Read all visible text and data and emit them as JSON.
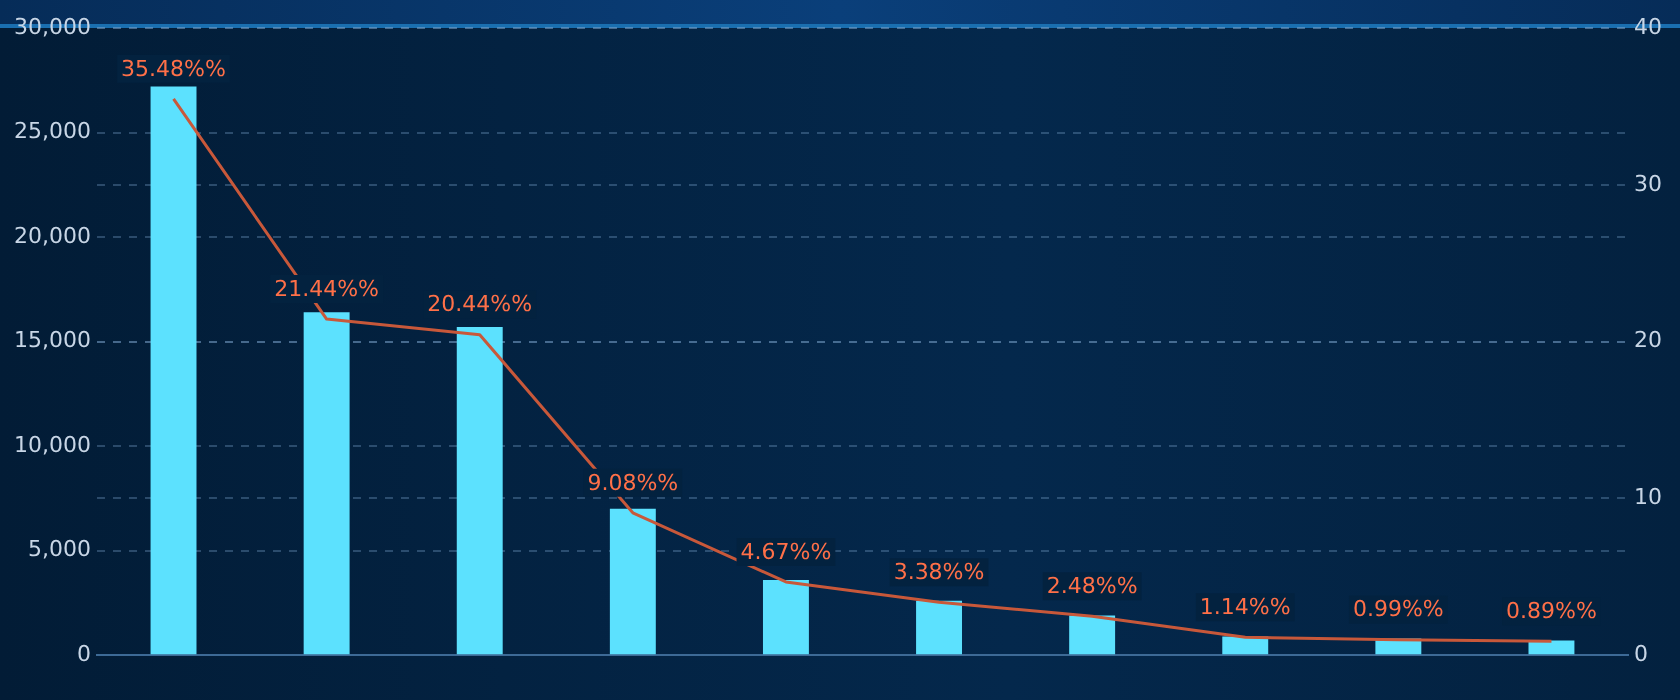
{
  "chart_data": {
    "type": "bar",
    "categories": [
      null,
      null,
      null,
      null,
      null,
      null,
      null,
      null,
      null,
      null
    ],
    "series": [
      {
        "color": "#5ce1fe",
        "values": [
          27200,
          16400,
          15700,
          7000,
          3600,
          2600,
          1900,
          900,
          800,
          700
        ]
      },
      {
        "type": "line",
        "axis": "y2",
        "color": "#c8583a",
        "values": [
          35.48,
          21.44,
          20.44,
          9.08,
          4.67,
          3.38,
          2.48,
          1.14,
          0.99,
          0.89
        ],
        "value_labels": [
          "35.48%%",
          "21.44%%",
          "20.44%%",
          "9.08%%",
          "4.67%%",
          "3.38%%",
          "2.48%%",
          "1.14%%",
          "0.99%%",
          "0.89%%"
        ]
      }
    ],
    "ylim": [
      0,
      30000
    ],
    "yticks": [
      {
        "value": 0,
        "label": "0"
      },
      {
        "value": 5000,
        "label": "5,000"
      },
      {
        "value": 10000,
        "label": "10,000"
      },
      {
        "value": 15000,
        "label": "15,000"
      },
      {
        "value": 20000,
        "label": "20,000"
      },
      {
        "value": 25000,
        "label": "25,000"
      },
      {
        "value": 30000,
        "label": "30,000"
      }
    ],
    "y2lim": [
      0,
      40
    ],
    "y2ticks": [
      0,
      10,
      20,
      30,
      40
    ],
    "grid": "y",
    "legend": false,
    "marker": "none",
    "line_style": "solid"
  }
}
